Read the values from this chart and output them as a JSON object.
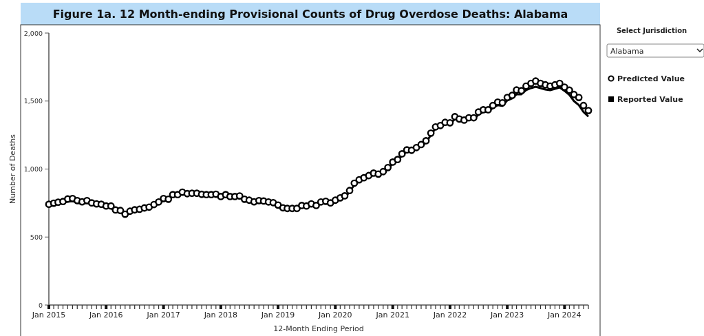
{
  "chart_data": {
    "type": "line",
    "title": "Figure 1a. 12 Month-ending Provisional Counts of Drug Overdose Deaths: Alabama",
    "xlabel": "12-Month Ending Period",
    "ylabel": "Number of Deaths",
    "annotations": [
      "Select Jurisdiction",
      "Alabama"
    ],
    "ylim": [
      0,
      2000
    ],
    "yticks": [
      0,
      500,
      {
        "value": 1000,
        "label": "1,000"
      },
      {
        "value": 1500,
        "label": "1,500"
      },
      {
        "value": 2000,
        "label": "2,000"
      }
    ],
    "xlim": [
      "2015-01",
      "2024-06"
    ],
    "xticks": [
      {
        "value": "2015-01",
        "label": "Jan 2015"
      },
      {
        "value": "2015-02",
        "label": null
      },
      {
        "value": "2015-03",
        "label": null
      },
      {
        "value": "2015-04",
        "label": null
      },
      {
        "value": "2015-05",
        "label": null
      },
      {
        "value": "2015-06",
        "label": null
      },
      {
        "value": "2015-07",
        "label": null
      },
      {
        "value": "2015-08",
        "label": null
      },
      {
        "value": "2015-09",
        "label": null
      },
      {
        "value": "2015-10",
        "label": null
      },
      {
        "value": "2015-11",
        "label": null
      },
      {
        "value": "2015-12",
        "label": null
      },
      {
        "value": "2016-01",
        "label": "Jan 2016"
      },
      {
        "value": "2016-02",
        "label": null
      },
      {
        "value": "2016-03",
        "label": null
      },
      {
        "value": "2016-04",
        "label": null
      },
      {
        "value": "2016-05",
        "label": null
      },
      {
        "value": "2016-06",
        "label": null
      },
      {
        "value": "2016-07",
        "label": null
      },
      {
        "value": "2016-08",
        "label": null
      },
      {
        "value": "2016-09",
        "label": null
      },
      {
        "value": "2016-10",
        "label": null
      },
      {
        "value": "2016-11",
        "label": null
      },
      {
        "value": "2016-12",
        "label": null
      },
      {
        "value": "2017-01",
        "label": "Jan 2017"
      },
      {
        "value": "2017-02",
        "label": null
      },
      {
        "value": "2017-03",
        "label": null
      },
      {
        "value": "2017-04",
        "label": null
      },
      {
        "value": "2017-05",
        "label": null
      },
      {
        "value": "2017-06",
        "label": null
      },
      {
        "value": "2017-07",
        "label": null
      },
      {
        "value": "2017-08",
        "label": null
      },
      {
        "value": "2017-09",
        "label": null
      },
      {
        "value": "2017-10",
        "label": null
      },
      {
        "value": "2017-11",
        "label": null
      },
      {
        "value": "2017-12",
        "label": null
      },
      {
        "value": "2018-01",
        "label": "Jan 2018"
      },
      {
        "value": "2018-02",
        "label": null
      },
      {
        "value": "2018-03",
        "label": null
      },
      {
        "value": "2018-04",
        "label": null
      },
      {
        "value": "2018-05",
        "label": null
      },
      {
        "value": "2018-06",
        "label": null
      },
      {
        "value": "2018-07",
        "label": null
      },
      {
        "value": "2018-08",
        "label": null
      },
      {
        "value": "2018-09",
        "label": null
      },
      {
        "value": "2018-10",
        "label": null
      },
      {
        "value": "2018-11",
        "label": null
      },
      {
        "value": "2018-12",
        "label": null
      },
      {
        "value": "2019-01",
        "label": "Jan 2019"
      },
      {
        "value": "2019-02",
        "label": null
      },
      {
        "value": "2019-03",
        "label": null
      },
      {
        "value": "2019-04",
        "label": null
      },
      {
        "value": "2019-05",
        "label": null
      },
      {
        "value": "2019-06",
        "label": null
      },
      {
        "value": "2019-07",
        "label": null
      },
      {
        "value": "2019-08",
        "label": null
      },
      {
        "value": "2019-09",
        "label": null
      },
      {
        "value": "2019-10",
        "label": null
      },
      {
        "value": "2019-11",
        "label": null
      },
      {
        "value": "2019-12",
        "label": null
      },
      {
        "value": "2020-01",
        "label": "Jan 2020"
      },
      {
        "value": "2020-02",
        "label": null
      },
      {
        "value": "2020-03",
        "label": null
      },
      {
        "value": "2020-04",
        "label": null
      },
      {
        "value": "2020-05",
        "label": null
      },
      {
        "value": "2020-06",
        "label": null
      },
      {
        "value": "2020-07",
        "label": null
      },
      {
        "value": "2020-08",
        "label": null
      },
      {
        "value": "2020-09",
        "label": null
      },
      {
        "value": "2020-10",
        "label": null
      },
      {
        "value": "2020-11",
        "label": null
      },
      {
        "value": "2020-12",
        "label": null
      },
      {
        "value": "2021-01",
        "label": "Jan 2021"
      },
      {
        "value": "2021-02",
        "label": null
      },
      {
        "value": "2021-03",
        "label": null
      },
      {
        "value": "2021-04",
        "label": null
      },
      {
        "value": "2021-05",
        "label": null
      },
      {
        "value": "2021-06",
        "label": null
      },
      {
        "value": "2021-07",
        "label": null
      },
      {
        "value": "2021-08",
        "label": null
      },
      {
        "value": "2021-09",
        "label": null
      },
      {
        "value": "2021-10",
        "label": null
      },
      {
        "value": "2021-11",
        "label": null
      },
      {
        "value": "2021-12",
        "label": null
      },
      {
        "value": "2022-01",
        "label": "Jan 2022"
      },
      {
        "value": "2022-02",
        "label": null
      },
      {
        "value": "2022-03",
        "label": null
      },
      {
        "value": "2022-04",
        "label": null
      },
      {
        "value": "2022-05",
        "label": null
      },
      {
        "value": "2022-06",
        "label": null
      },
      {
        "value": "2022-07",
        "label": null
      },
      {
        "value": "2022-08",
        "label": null
      },
      {
        "value": "2022-09",
        "label": null
      },
      {
        "value": "2022-10",
        "label": null
      },
      {
        "value": "2022-11",
        "label": null
      },
      {
        "value": "2022-12",
        "label": null
      },
      {
        "value": "2023-01",
        "label": "Jan 2023"
      },
      {
        "value": "2023-02",
        "label": null
      },
      {
        "value": "2023-03",
        "label": null
      },
      {
        "value": "2023-04",
        "label": null
      },
      {
        "value": "2023-05",
        "label": null
      },
      {
        "value": "2023-06",
        "label": null
      },
      {
        "value": "2023-07",
        "label": null
      },
      {
        "value": "2023-08",
        "label": null
      },
      {
        "value": "2023-09",
        "label": null
      },
      {
        "value": "2023-10",
        "label": null
      },
      {
        "value": "2023-11",
        "label": null
      },
      {
        "value": "2023-12",
        "label": null
      },
      {
        "value": "2024-01",
        "label": "Jan 2024"
      },
      {
        "value": "2024-02",
        "label": null
      },
      {
        "value": "2024-03",
        "label": null
      },
      {
        "value": "2024-04",
        "label": null
      },
      {
        "value": "2024-05",
        "label": null
      },
      {
        "value": "2024-06",
        "label": null
      }
    ],
    "x": [
      "2015-01",
      "2015-02",
      "2015-03",
      "2015-04",
      "2015-05",
      "2015-06",
      "2015-07",
      "2015-08",
      "2015-09",
      "2015-10",
      "2015-11",
      "2015-12",
      "2016-01",
      "2016-02",
      "2016-03",
      "2016-04",
      "2016-05",
      "2016-06",
      "2016-07",
      "2016-08",
      "2016-09",
      "2016-10",
      "2016-11",
      "2016-12",
      "2017-01",
      "2017-02",
      "2017-03",
      "2017-04",
      "2017-05",
      "2017-06",
      "2017-07",
      "2017-08",
      "2017-09",
      "2017-10",
      "2017-11",
      "2017-12",
      "2018-01",
      "2018-02",
      "2018-03",
      "2018-04",
      "2018-05",
      "2018-06",
      "2018-07",
      "2018-08",
      "2018-09",
      "2018-10",
      "2018-11",
      "2018-12",
      "2019-01",
      "2019-02",
      "2019-03",
      "2019-04",
      "2019-05",
      "2019-06",
      "2019-07",
      "2019-08",
      "2019-09",
      "2019-10",
      "2019-11",
      "2019-12",
      "2020-01",
      "2020-02",
      "2020-03",
      "2020-04",
      "2020-05",
      "2020-06",
      "2020-07",
      "2020-08",
      "2020-09",
      "2020-10",
      "2020-11",
      "2020-12",
      "2021-01",
      "2021-02",
      "2021-03",
      "2021-04",
      "2021-05",
      "2021-06",
      "2021-07",
      "2021-08",
      "2021-09",
      "2021-10",
      "2021-11",
      "2021-12",
      "2022-01",
      "2022-02",
      "2022-03",
      "2022-04",
      "2022-05",
      "2022-06",
      "2022-07",
      "2022-08",
      "2022-09",
      "2022-10",
      "2022-11",
      "2022-12",
      "2023-01",
      "2023-02",
      "2023-03",
      "2023-04",
      "2023-05",
      "2023-06",
      "2023-07",
      "2023-08",
      "2023-09",
      "2023-10",
      "2023-11",
      "2023-12",
      "2024-01",
      "2024-02",
      "2024-03",
      "2024-04",
      "2024-05",
      "2024-06"
    ],
    "series": [
      {
        "name": "Reported Value",
        "color": "#000000",
        "values": [
          725,
          735,
          745,
          750,
          760,
          765,
          752,
          745,
          752,
          740,
          733,
          728,
          718,
          712,
          688,
          682,
          662,
          678,
          688,
          692,
          702,
          710,
          728,
          745,
          770,
          768,
          800,
          805,
          818,
          812,
          812,
          812,
          805,
          805,
          805,
          806,
          790,
          800,
          790,
          790,
          792,
          770,
          762,
          752,
          758,
          756,
          750,
          745,
          725,
          708,
          705,
          705,
          705,
          720,
          720,
          735,
          725,
          748,
          752,
          745,
          762,
          778,
          795,
          830,
          885,
          910,
          925,
          940,
          958,
          955,
          970,
          1000,
          1040,
          1060,
          1100,
          1130,
          1130,
          1148,
          1170,
          1195,
          1250,
          1300,
          1312,
          1335,
          1332,
          1368,
          1355,
          1352,
          1365,
          1365,
          1400,
          1420,
          1420,
          1450,
          1470,
          1465,
          1505,
          1520,
          1550,
          1550,
          1580,
          1595,
          1605,
          1595,
          1585,
          1580,
          1590,
          1600,
          1575,
          1545,
          1500,
          1470,
          1420,
          1386
        ]
      },
      {
        "name": "Predicted Value",
        "type": "scatter",
        "marker": "circle",
        "color": "#000000",
        "values": [
          741,
          749,
          756,
          761,
          780,
          783,
          768,
          759,
          768,
          751,
          744,
          741,
          728,
          728,
          699,
          695,
          668,
          690,
          700,
          704,
          714,
          720,
          739,
          758,
          783,
          778,
          812,
          812,
          830,
          819,
          822,
          822,
          814,
          812,
          812,
          815,
          798,
          812,
          798,
          798,
          802,
          778,
          771,
          759,
          768,
          765,
          758,
          753,
          735,
          715,
          710,
          710,
          710,
          732,
          728,
          744,
          732,
          758,
          763,
          751,
          771,
          788,
          803,
          842,
          896,
          921,
          936,
          952,
          970,
          963,
          981,
          1011,
          1051,
          1070,
          1112,
          1141,
          1138,
          1158,
          1180,
          1208,
          1264,
          1310,
          1320,
          1343,
          1340,
          1385,
          1368,
          1360,
          1377,
          1377,
          1419,
          1436,
          1436,
          1467,
          1492,
          1487,
          1526,
          1542,
          1581,
          1576,
          1610,
          1630,
          1647,
          1630,
          1619,
          1610,
          1619,
          1630,
          1602,
          1580,
          1548,
          1526,
          1467,
          1430
        ]
      }
    ],
    "legend": "right"
  }
}
